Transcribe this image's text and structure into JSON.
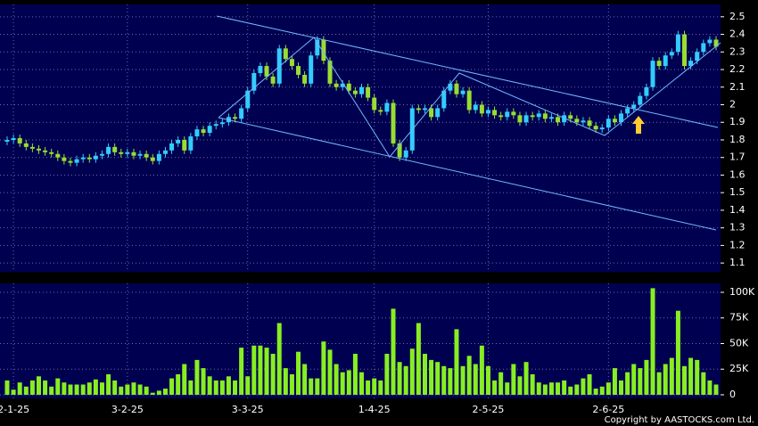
{
  "chart_data": {
    "type": "candlestick",
    "categories": [
      null,
      "2-1-25",
      null,
      null,
      null,
      null,
      null,
      null,
      null,
      null,
      null,
      null,
      null,
      null,
      null,
      null,
      null,
      null,
      null,
      "3-2-25",
      null,
      null,
      null,
      null,
      null,
      null,
      null,
      null,
      null,
      null,
      null,
      null,
      null,
      null,
      null,
      null,
      null,
      null,
      "3-3-25",
      null,
      null,
      null,
      null,
      null,
      null,
      null,
      null,
      null,
      null,
      null,
      null,
      null,
      null,
      null,
      null,
      null,
      null,
      null,
      "1-4-25",
      null,
      null,
      null,
      null,
      null,
      null,
      null,
      null,
      null,
      null,
      null,
      null,
      null,
      null,
      null,
      null,
      null,
      "2-5-25",
      null,
      null,
      null,
      null,
      null,
      null,
      null,
      null,
      null,
      null,
      null,
      null,
      null,
      null,
      null,
      null,
      null,
      null,
      "2-6-25",
      null,
      null,
      null,
      null,
      null,
      null,
      null,
      null,
      null,
      null,
      null,
      null,
      null,
      null,
      null,
      null,
      null
    ],
    "open": [
      1.79,
      1.8,
      1.81,
      1.78,
      1.76,
      1.75,
      1.74,
      1.73,
      1.72,
      1.7,
      1.68,
      1.67,
      1.69,
      1.7,
      1.69,
      1.71,
      1.72,
      1.76,
      1.73,
      1.72,
      1.73,
      1.71,
      1.72,
      1.7,
      1.68,
      1.72,
      1.74,
      1.78,
      1.8,
      1.74,
      1.82,
      1.86,
      1.84,
      1.88,
      1.89,
      1.9,
      1.93,
      1.92,
      1.98,
      2.08,
      2.18,
      2.22,
      2.16,
      2.12,
      2.32,
      2.26,
      2.22,
      2.17,
      2.12,
      2.28,
      2.37,
      2.25,
      2.12,
      2.1,
      2.12,
      2.08,
      2.06,
      2.1,
      2.04,
      1.97,
      1.96,
      2.01,
      1.78,
      1.7,
      1.74,
      1.98,
      1.97,
      1.98,
      1.93,
      1.98,
      2.08,
      2.12,
      2.06,
      2.08,
      1.97,
      2.0,
      1.95,
      1.97,
      1.94,
      1.93,
      1.96,
      1.94,
      1.9,
      1.94,
      1.93,
      1.95,
      1.92,
      1.93,
      1.9,
      1.94,
      1.92,
      1.9,
      1.91,
      1.88,
      1.86,
      1.87,
      1.92,
      1.9,
      1.95,
      1.98,
      2.0,
      2.05,
      2.1,
      2.25,
      2.22,
      2.28,
      2.3,
      2.4,
      2.22,
      2.25,
      2.3,
      2.35,
      2.37
    ],
    "high": [
      1.82,
      1.83,
      1.83,
      1.8,
      1.78,
      1.77,
      1.76,
      1.75,
      1.74,
      1.72,
      1.7,
      1.71,
      1.72,
      1.72,
      1.73,
      1.74,
      1.78,
      1.78,
      1.75,
      1.75,
      1.75,
      1.74,
      1.74,
      1.72,
      1.74,
      1.76,
      1.8,
      1.82,
      1.82,
      1.84,
      1.88,
      1.88,
      1.9,
      1.91,
      1.92,
      1.95,
      1.95,
      2.0,
      2.1,
      2.2,
      2.24,
      2.24,
      2.18,
      2.34,
      2.34,
      2.28,
      2.24,
      2.19,
      2.3,
      2.39,
      2.39,
      2.27,
      2.14,
      2.14,
      2.14,
      2.1,
      2.12,
      2.12,
      2.06,
      1.99,
      2.03,
      2.03,
      1.8,
      1.76,
      2.0,
      2.0,
      2.0,
      2.0,
      2.0,
      2.1,
      2.14,
      2.14,
      2.1,
      2.1,
      2.02,
      2.02,
      1.99,
      1.99,
      1.96,
      1.98,
      1.98,
      1.96,
      1.96,
      1.96,
      1.97,
      1.97,
      1.95,
      1.95,
      1.96,
      1.96,
      1.94,
      1.93,
      1.93,
      1.9,
      1.89,
      1.94,
      1.94,
      1.97,
      2.0,
      2.02,
      2.07,
      2.12,
      2.27,
      2.27,
      2.3,
      2.32,
      2.42,
      2.42,
      2.27,
      2.32,
      2.37,
      2.39,
      2.39
    ],
    "low": [
      1.77,
      1.78,
      1.76,
      1.74,
      1.73,
      1.72,
      1.71,
      1.7,
      1.68,
      1.66,
      1.65,
      1.65,
      1.67,
      1.67,
      1.67,
      1.69,
      1.7,
      1.71,
      1.7,
      1.7,
      1.69,
      1.69,
      1.68,
      1.66,
      1.66,
      1.7,
      1.72,
      1.76,
      1.72,
      1.72,
      1.8,
      1.82,
      1.82,
      1.86,
      1.87,
      1.88,
      1.9,
      1.9,
      1.96,
      2.06,
      2.16,
      2.14,
      2.1,
      2.1,
      2.24,
      2.2,
      2.15,
      2.1,
      2.1,
      2.26,
      2.23,
      2.1,
      2.08,
      2.08,
      2.06,
      2.04,
      2.04,
      2.02,
      1.95,
      1.94,
      1.94,
      1.76,
      1.68,
      1.68,
      1.72,
      1.95,
      1.95,
      1.91,
      1.91,
      1.96,
      2.06,
      2.04,
      2.04,
      1.95,
      1.95,
      1.93,
      1.93,
      1.92,
      1.91,
      1.91,
      1.92,
      1.88,
      1.88,
      1.91,
      1.91,
      1.9,
      1.9,
      1.88,
      1.88,
      1.9,
      1.88,
      1.88,
      1.86,
      1.84,
      1.84,
      1.85,
      1.88,
      1.88,
      1.93,
      1.96,
      1.98,
      2.03,
      2.08,
      2.2,
      2.2,
      2.26,
      2.28,
      2.2,
      2.2,
      2.23,
      2.28,
      2.33,
      2.31
    ],
    "close": [
      1.8,
      1.81,
      1.78,
      1.76,
      1.75,
      1.74,
      1.73,
      1.72,
      1.7,
      1.68,
      1.67,
      1.69,
      1.7,
      1.69,
      1.71,
      1.72,
      1.76,
      1.73,
      1.72,
      1.73,
      1.71,
      1.72,
      1.7,
      1.68,
      1.72,
      1.74,
      1.78,
      1.8,
      1.74,
      1.82,
      1.86,
      1.84,
      1.88,
      1.89,
      1.9,
      1.93,
      1.92,
      1.98,
      2.08,
      2.18,
      2.22,
      2.16,
      2.12,
      2.32,
      2.26,
      2.22,
      2.17,
      2.12,
      2.28,
      2.37,
      2.25,
      2.12,
      2.1,
      2.12,
      2.08,
      2.06,
      2.1,
      2.04,
      1.97,
      1.96,
      2.01,
      1.78,
      1.7,
      1.74,
      1.98,
      1.97,
      1.98,
      1.93,
      1.98,
      2.08,
      2.12,
      2.06,
      2.08,
      1.97,
      2.0,
      1.95,
      1.97,
      1.94,
      1.93,
      1.96,
      1.94,
      1.9,
      1.94,
      1.93,
      1.95,
      1.92,
      1.93,
      1.9,
      1.94,
      1.92,
      1.9,
      1.91,
      1.88,
      1.86,
      1.87,
      1.92,
      1.9,
      1.95,
      1.98,
      2.0,
      2.05,
      2.1,
      2.25,
      2.22,
      2.28,
      2.3,
      2.4,
      2.22,
      2.25,
      2.3,
      2.35,
      2.37,
      2.33
    ],
    "up_color": "#33ccff",
    "down_color": "#99dd33",
    "ylim": [
      1.05,
      2.57
    ],
    "yticks": [
      1.1,
      1.2,
      1.3,
      1.4,
      1.5,
      1.6,
      1.7,
      1.8,
      1.9,
      2,
      2.1,
      2.2,
      2.3,
      2.4,
      2.5
    ],
    "grid": true,
    "volume": {
      "color": "#88ee22",
      "values": [
        14000,
        5000,
        12000,
        8000,
        14000,
        18000,
        14000,
        8000,
        16000,
        12000,
        10000,
        10000,
        10000,
        12000,
        15000,
        12000,
        20000,
        14000,
        8000,
        10000,
        12000,
        10000,
        8000,
        2000,
        4000,
        6000,
        16000,
        20000,
        30000,
        14000,
        34000,
        26000,
        18000,
        14000,
        14000,
        18000,
        14000,
        46000,
        18000,
        48000,
        48000,
        46000,
        40000,
        70000,
        26000,
        20000,
        42000,
        30000,
        16000,
        16000,
        52000,
        44000,
        30000,
        22000,
        24000,
        40000,
        22000,
        14000,
        16000,
        14000,
        40000,
        84000,
        32000,
        28000,
        45000,
        70000,
        40000,
        34000,
        32000,
        28000,
        26000,
        64000,
        28000,
        38000,
        30000,
        48000,
        28000,
        14000,
        22000,
        12000,
        30000,
        18000,
        32000,
        20000,
        12000,
        10000,
        12000,
        12000,
        14000,
        8000,
        10000,
        16000,
        20000,
        6000,
        8000,
        12000,
        26000,
        14000,
        22000,
        30000,
        26000,
        34000,
        104000,
        22000,
        30000,
        36000,
        82000,
        28000,
        36000,
        34000,
        22000,
        14000,
        10000
      ],
      "ylim": [
        -3500,
        108700
      ],
      "yticks": [
        0,
        {
          "value": 25000,
          "label": "25K"
        },
        {
          "value": 50000,
          "label": "50K"
        },
        {
          "value": 75000,
          "label": "75K"
        },
        {
          "value": 100000,
          "label": "100K"
        }
      ]
    },
    "copyright": "Copyright by AASTOCKS.com Ltd."
  }
}
